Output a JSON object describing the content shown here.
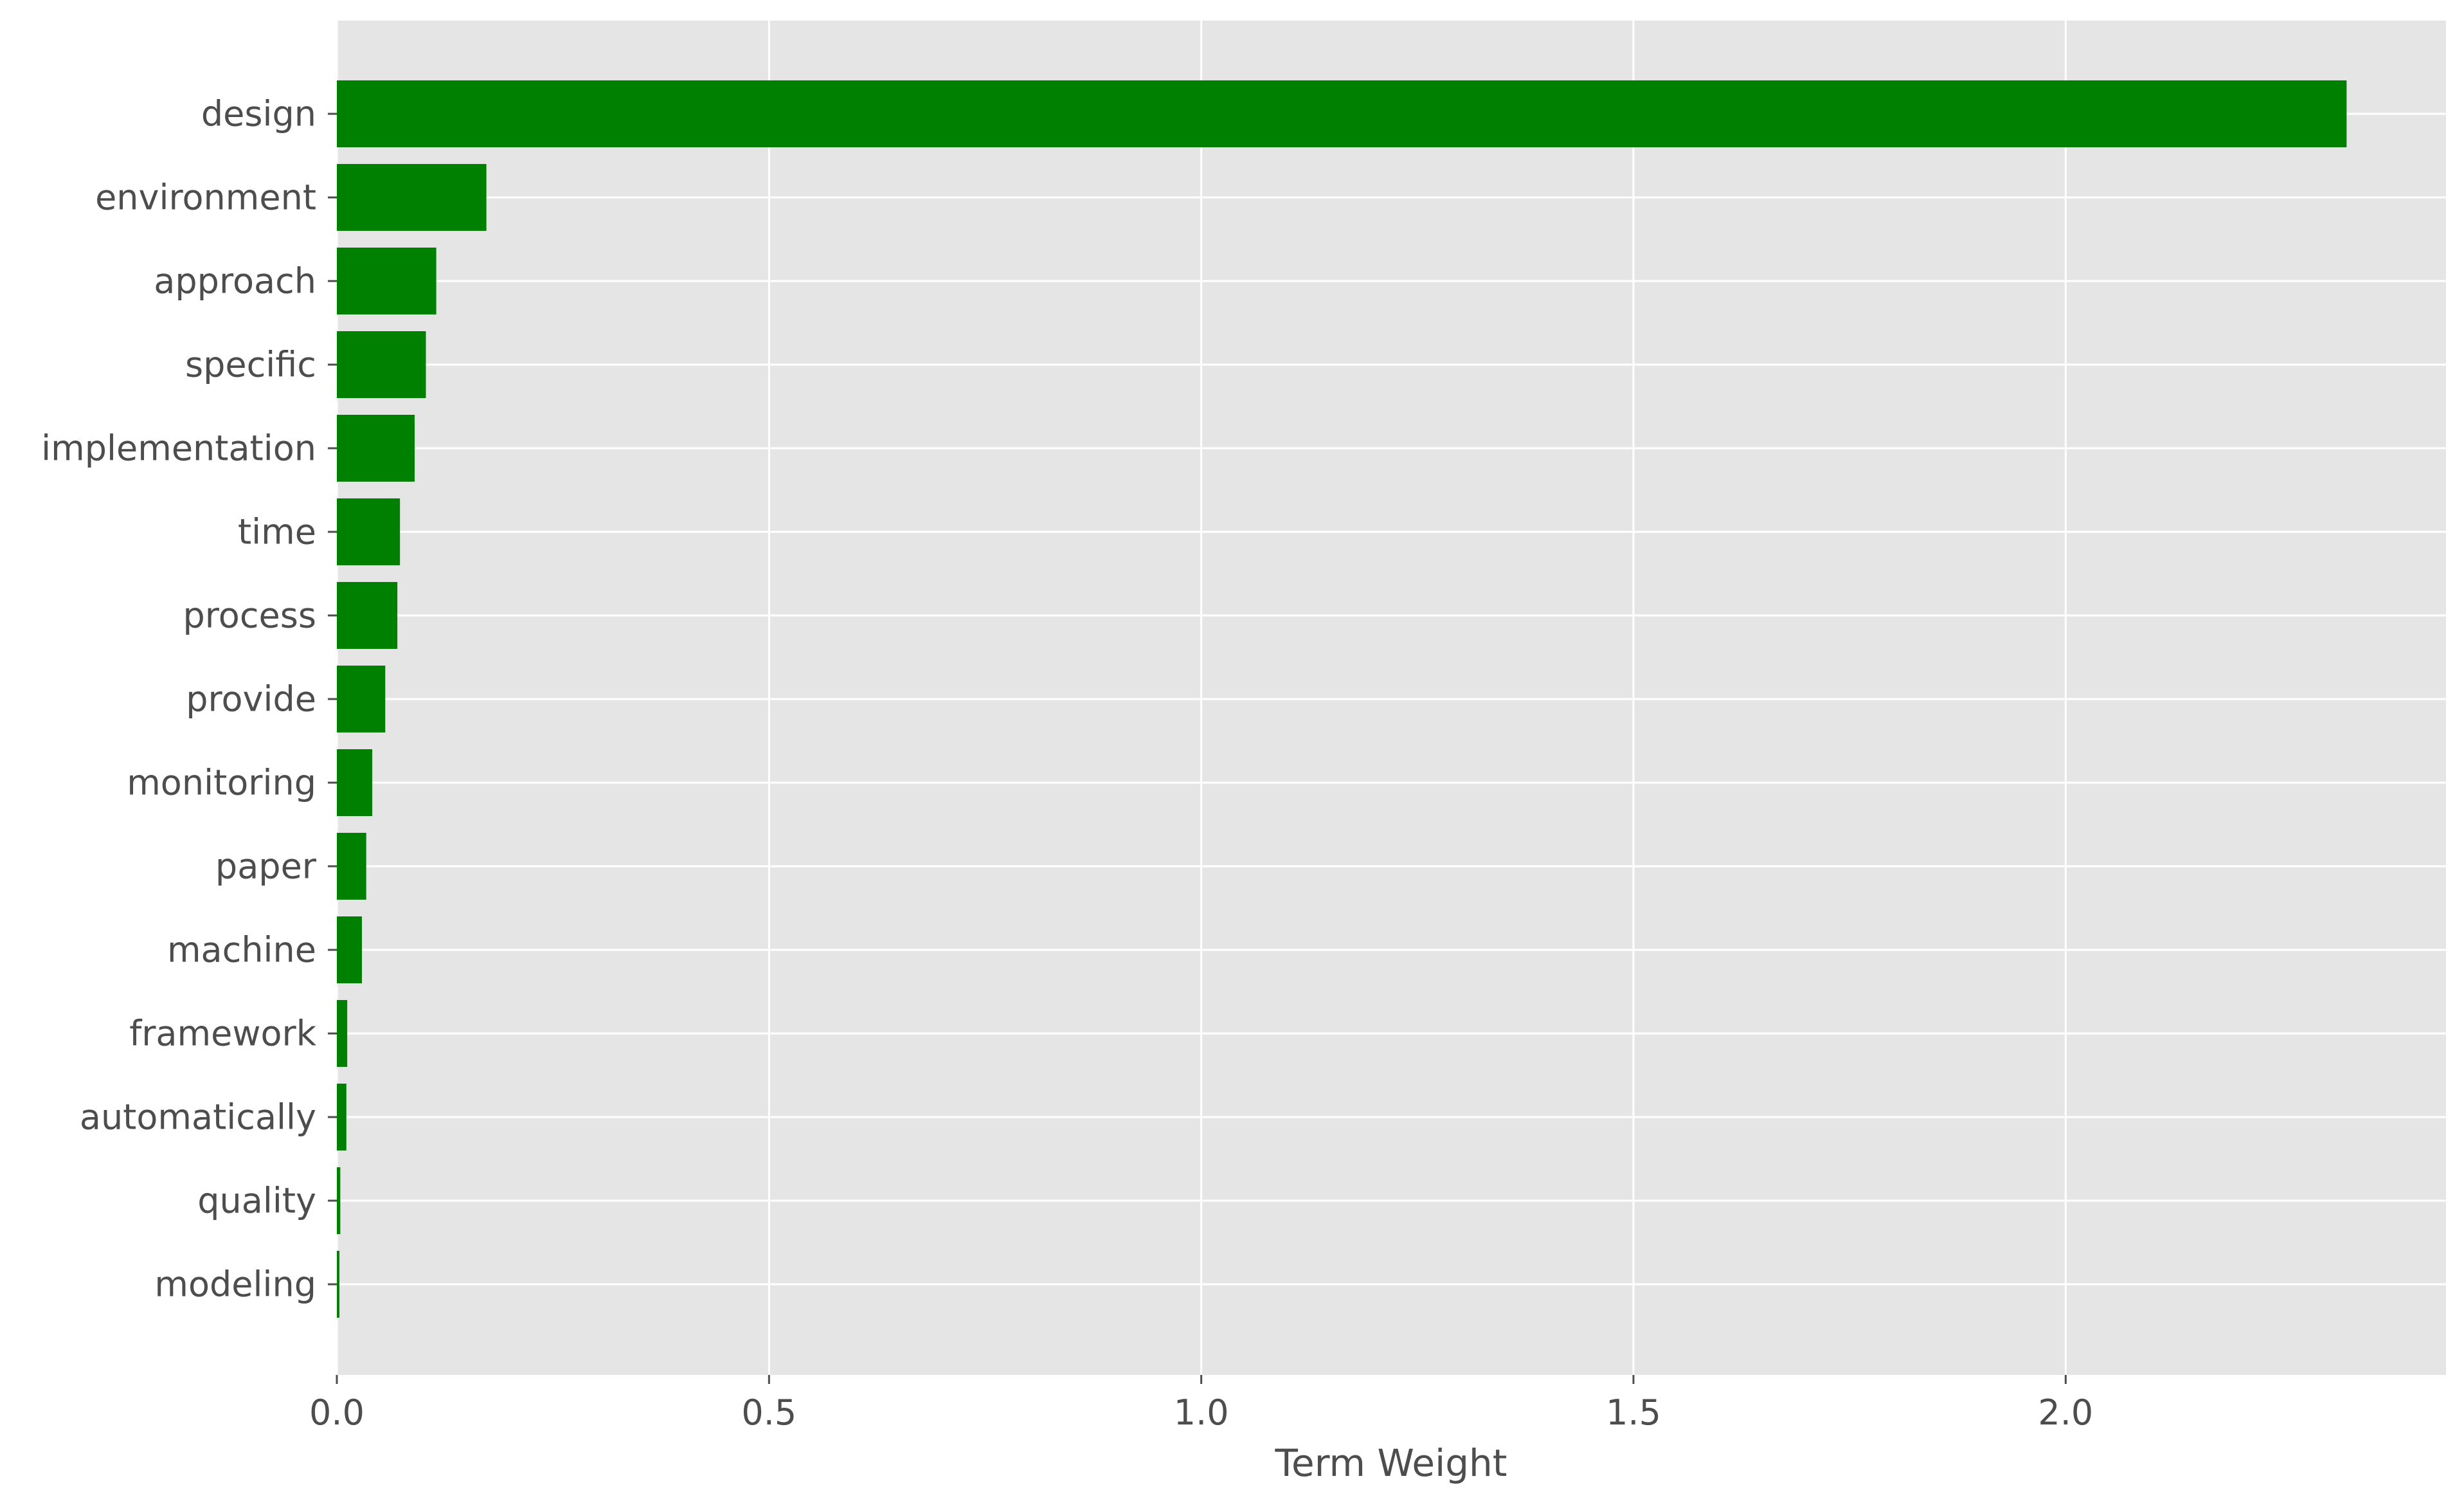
{
  "chart_data": {
    "type": "bar",
    "orientation": "horizontal",
    "title": "",
    "xlabel": "Term Weight",
    "ylabel": "",
    "categories": [
      "design",
      "environment",
      "approach",
      "specific",
      "implementation",
      "time",
      "process",
      "provide",
      "monitoring",
      "paper",
      "machine",
      "framework",
      "automatically",
      "quality",
      "modeling"
    ],
    "values": [
      2.325,
      0.173,
      0.115,
      0.103,
      0.09,
      0.073,
      0.07,
      0.056,
      0.041,
      0.034,
      0.029,
      0.012,
      0.011,
      0.004,
      0.003
    ],
    "xlim": [
      0,
      2.44
    ],
    "xticks": [
      0.0,
      0.5,
      1.0,
      1.5,
      2.0
    ],
    "xtick_labels": [
      "0.0",
      "0.5",
      "1.0",
      "1.5",
      "2.0"
    ],
    "grid": true,
    "legend": "none",
    "colors": {
      "bar": "#008000",
      "plot_background": "#e5e5e5",
      "grid": "#ffffff",
      "text": "#4d4d4d"
    }
  }
}
